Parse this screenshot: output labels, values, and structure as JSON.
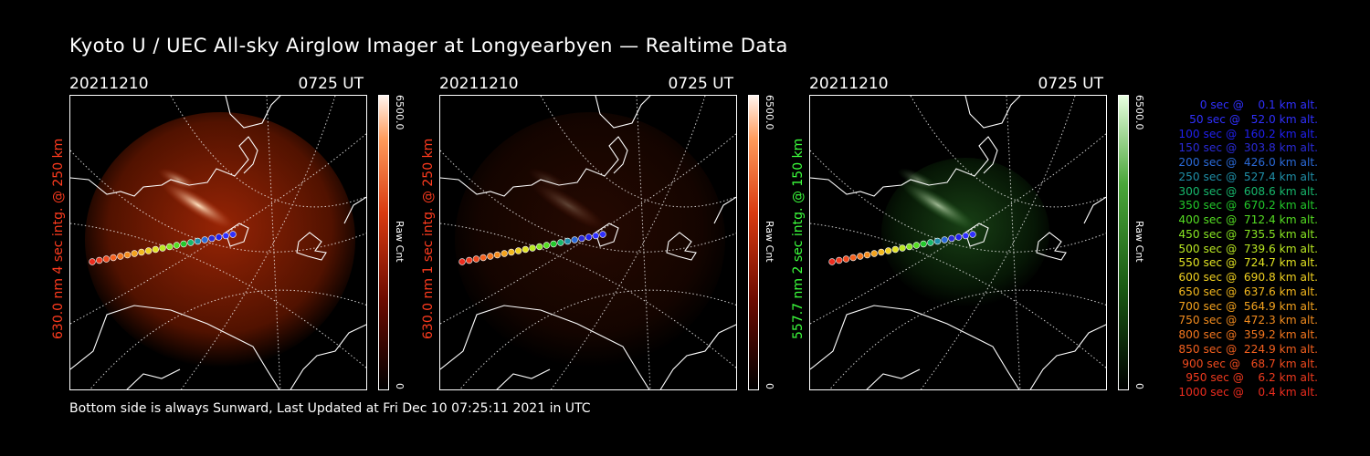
{
  "title": "Kyoto U / UEC All-sky Airglow Imager at Longyearbyen — Realtime Data",
  "footer": "Bottom side is always Sunward, Last Updated at Fri Dec 10 07:25:11 2021 in UTC",
  "panels": [
    {
      "date": "20211210",
      "time": "0725 UT",
      "ylabel": "630.0 nm 4 sec intg. @ 250 km",
      "label_color": "#ff3b1e",
      "cbar_max": "6500.0",
      "cbar_unit": "Raw Cnt",
      "cbar_min": "0",
      "image_color": "red",
      "brightness": 1.0
    },
    {
      "date": "20211210",
      "time": "0725 UT",
      "ylabel": "630.0 nm 1 sec intg. @ 250 km",
      "label_color": "#ff3b1e",
      "cbar_max": "6500.0",
      "cbar_unit": "Raw Cnt",
      "cbar_min": "0",
      "image_color": "red",
      "brightness": 0.25
    },
    {
      "date": "20211210",
      "time": "0725 UT",
      "ylabel": "557.7 nm 2 sec intg. @ 150 km",
      "label_color": "#3cff3c",
      "cbar_max": "6500.0",
      "cbar_unit": "Raw Cnt",
      "cbar_min": "0",
      "image_color": "green",
      "brightness": 0.6
    }
  ],
  "legend": [
    {
      "text": "0 sec @    0.1 km alt.",
      "color": "#3030ff"
    },
    {
      "text": "50 sec @   52.0 km alt.",
      "color": "#3030ff"
    },
    {
      "text": "100 sec @  160.2 km alt.",
      "color": "#2020ee"
    },
    {
      "text": "150 sec @  303.8 km alt.",
      "color": "#2a2ad8"
    },
    {
      "text": "200 sec @  426.0 km alt.",
      "color": "#2a6ad8"
    },
    {
      "text": "250 sec @  527.4 km alt.",
      "color": "#1f8fa8"
    },
    {
      "text": "300 sec @  608.6 km alt.",
      "color": "#17b76c"
    },
    {
      "text": "350 sec @  670.2 km alt.",
      "color": "#22c82a"
    },
    {
      "text": "400 sec @  712.4 km alt.",
      "color": "#55dd22"
    },
    {
      "text": "450 sec @  735.5 km alt.",
      "color": "#88e622"
    },
    {
      "text": "500 sec @  739.6 km alt.",
      "color": "#bbe922"
    },
    {
      "text": "550 sec @  724.7 km alt.",
      "color": "#e2e322"
    },
    {
      "text": "600 sec @  690.8 km alt.",
      "color": "#f0d020"
    },
    {
      "text": "650 sec @  637.6 km alt.",
      "color": "#f3b81e"
    },
    {
      "text": "700 sec @  564.9 km alt.",
      "color": "#f3a21e"
    },
    {
      "text": "750 sec @  472.3 km alt.",
      "color": "#f38c1e"
    },
    {
      "text": "800 sec @  359.2 km alt.",
      "color": "#f3761e"
    },
    {
      "text": "850 sec @  224.9 km alt.",
      "color": "#f3601e"
    },
    {
      "text": "900 sec @   68.7 km alt.",
      "color": "#f04a1e"
    },
    {
      "text": "950 sec @    6.2 km alt.",
      "color": "#ee3a1e"
    },
    {
      "text": "1000 sec @    0.4 km alt.",
      "color": "#ec2c1e"
    }
  ]
}
